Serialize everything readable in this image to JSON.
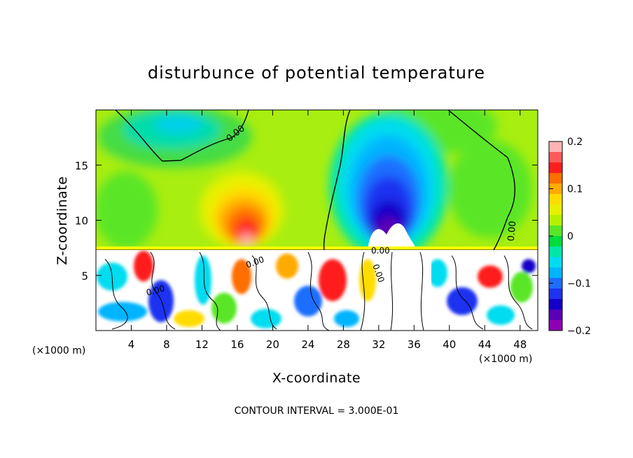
{
  "chart_data": {
    "type": "heatmap",
    "title": "disturbunce of potential temperature",
    "xlabel": "X-coordinate",
    "ylabel": "Z-coordinate",
    "x_unit": "(×1000 m)",
    "x_unit_right": "(×1000 m)",
    "x_ticks": [
      "4",
      "8",
      "12",
      "16",
      "20",
      "24",
      "28",
      "32",
      "36",
      "40",
      "44",
      "48"
    ],
    "y_ticks": [
      "5",
      "10",
      "15"
    ],
    "xlim": [
      0,
      50
    ],
    "ylim": [
      0,
      20
    ],
    "colorbar": {
      "ticks": [
        "0.2",
        "0.1",
        "0",
        "−0.1",
        "−0.2"
      ],
      "range": [
        -0.2,
        0.2
      ],
      "colors": [
        "#ffb4b4",
        "#ff5a5a",
        "#ff1e1e",
        "#ff6e00",
        "#ffaa00",
        "#ffdc00",
        "#e6f000",
        "#b4f000",
        "#5ae628",
        "#00dc3c",
        "#00e6aa",
        "#00dcf0",
        "#00b4ff",
        "#1e6eff",
        "#1e32f0",
        "#1400c8",
        "#5a00b4",
        "#8c00b4"
      ]
    },
    "contour_labels": [
      "0.00",
      "0.00",
      "0.00",
      "0.00",
      "0.00",
      "0.00"
    ],
    "footer": "CONTOUR INTERVAL = 3.000E-01"
  }
}
